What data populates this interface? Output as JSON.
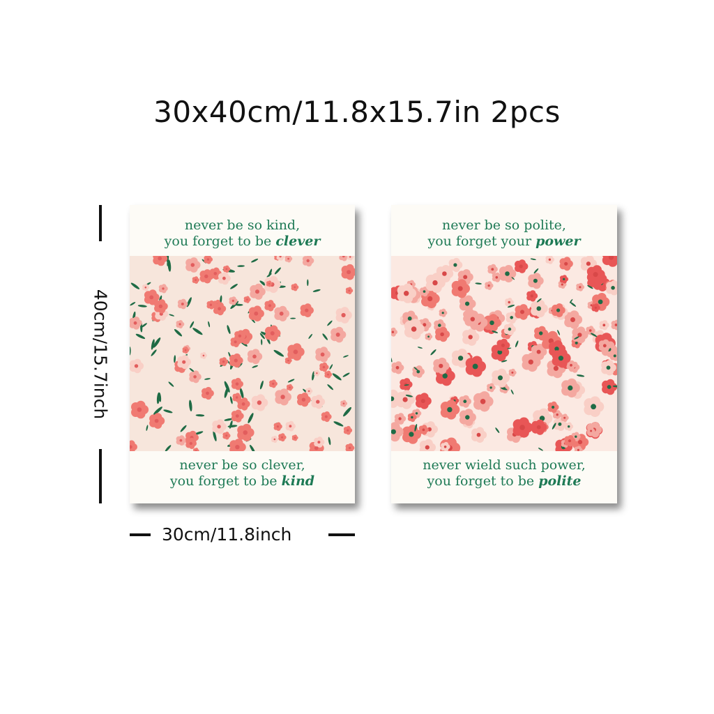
{
  "headline": "30x40cm/11.8x15.7in 2pcs",
  "dimensions": {
    "height_label": "40cm/15.7inch",
    "width_label": "30cm/11.8inch"
  },
  "posters": [
    {
      "top_quote": {
        "line1": "never be so kind,",
        "line2_prefix": "you forget to be ",
        "line2_emphasis": "clever"
      },
      "bottom_quote": {
        "line1": "never be so clever,",
        "line2_prefix": "you forget to be ",
        "line2_emphasis": "kind"
      }
    },
    {
      "top_quote": {
        "line1": "never be so polite,",
        "line2_prefix": "you forget your ",
        "line2_emphasis": "power"
      },
      "bottom_quote": {
        "line1": "never wield such power,",
        "line2_prefix": "you forget to be ",
        "line2_emphasis": "polite"
      }
    }
  ],
  "colors": {
    "quote_text": "#1e7a55",
    "poster_bg": "#fdfbf6",
    "left_pattern_bg": "#f7e6dc",
    "right_pattern_bg": "#fbe9e2",
    "petal_coral": "#f07a72",
    "petal_pink": "#f4a8a0",
    "petal_light": "#f9cfc6",
    "petal_red": "#e85656",
    "leaf_green": "#1f6b45"
  }
}
